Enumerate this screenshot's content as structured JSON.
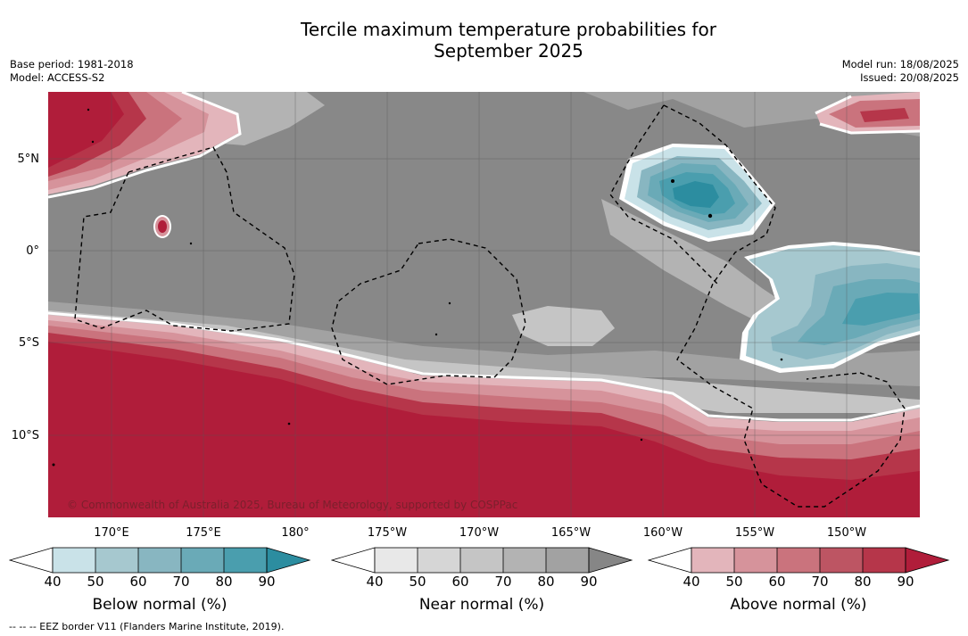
{
  "title_line1": "Tercile maximum temperature probabilities for",
  "title_line2": "September 2025",
  "base_period": "Base period: 1981-2018",
  "model": "Model: ACCESS-S2",
  "model_run": "Model run: 18/08/2025",
  "issued": "Issued: 20/08/2025",
  "lat_labels": [
    "5°N",
    "0°",
    "5°S",
    "10°S"
  ],
  "lon_labels": [
    "170°E",
    "175°E",
    "180°",
    "175°W",
    "170°W",
    "165°W",
    "160°W",
    "155°W",
    "150°W"
  ],
  "credit": "© Commonwealth of Australia 2025, Bureau of Meteorology, supported by COSPPac",
  "legend_note": "--  --  -- EEZ border V11 (Flanders Marine Institute, 2019).",
  "colorbars": [
    {
      "title": "Below normal (%)",
      "ticks": [
        "40",
        "50",
        "60",
        "70",
        "80",
        "90"
      ],
      "colors": [
        "#ffffff",
        "#c9e2e8",
        "#a6c8cf",
        "#88b6c1",
        "#6aaab7",
        "#4a9eae",
        "#2c8da0"
      ]
    },
    {
      "title": "Near normal (%)",
      "ticks": [
        "40",
        "50",
        "60",
        "70",
        "80",
        "90"
      ],
      "colors": [
        "#ffffff",
        "#e8e8e8",
        "#d6d6d6",
        "#c5c5c5",
        "#b3b3b3",
        "#a2a2a2",
        "#868686"
      ]
    },
    {
      "title": "Above normal (%)",
      "ticks": [
        "40",
        "50",
        "60",
        "70",
        "80",
        "90"
      ],
      "colors": [
        "#ffffff",
        "#e3b5bb",
        "#d6939b",
        "#ca737d",
        "#bd5563",
        "#b6364a",
        "#b01d3a"
      ]
    }
  ],
  "colors": {
    "near_base": "#888888",
    "above_max": "#b01d3a",
    "below_max": "#2c8da0",
    "eez_border": "#000000"
  }
}
